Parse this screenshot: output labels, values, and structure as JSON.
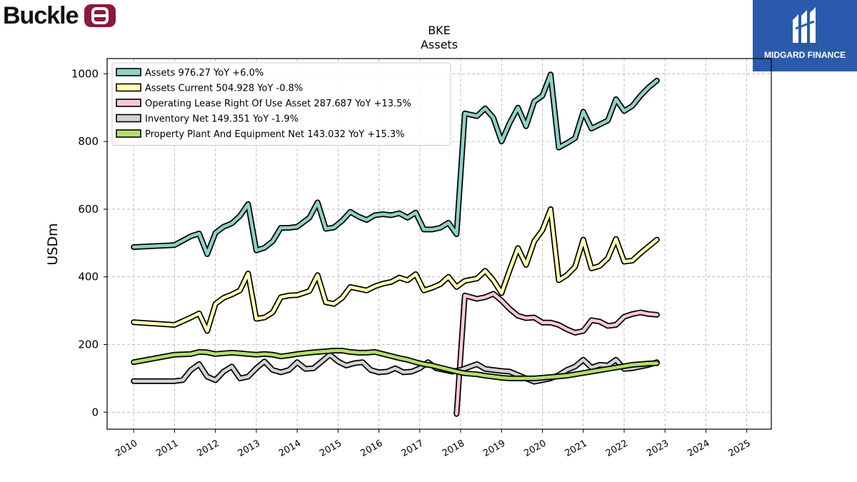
{
  "brand": {
    "name": "Buckle",
    "mark_color": "#8b1a3a"
  },
  "watermark": {
    "name": "MIDGARD FINANCE",
    "color": "#2b5aad"
  },
  "chart_data": {
    "type": "line",
    "title": "BKE",
    "subtitle": "Assets",
    "ylabel": "USDm",
    "xlabel": "",
    "xlim": [
      2009.35,
      2025.6
    ],
    "ylim": [
      -50,
      1045
    ],
    "yticks": [
      0,
      200,
      400,
      600,
      800,
      1000
    ],
    "xticks": [
      "2010",
      "2011",
      "2012",
      "2013",
      "2014",
      "2015",
      "2016",
      "2017",
      "2018",
      "2019",
      "2020",
      "2021",
      "2022",
      "2023",
      "2024",
      "2025"
    ],
    "grid": true,
    "legend_position": "top-left",
    "series": [
      {
        "name": "Assets",
        "legend": "Assets  976.27 YoY +6.0%",
        "color": "#8ed1c6",
        "points": [
          [
            2010.0,
            488
          ],
          [
            2011.0,
            494
          ],
          [
            2011.4,
            520
          ],
          [
            2011.6,
            528
          ],
          [
            2011.8,
            467
          ],
          [
            2012.0,
            530
          ],
          [
            2012.2,
            548
          ],
          [
            2012.4,
            558
          ],
          [
            2012.6,
            580
          ],
          [
            2012.8,
            615
          ],
          [
            2013.0,
            478
          ],
          [
            2013.2,
            486
          ],
          [
            2013.4,
            505
          ],
          [
            2013.6,
            545
          ],
          [
            2013.8,
            545
          ],
          [
            2014.0,
            548
          ],
          [
            2014.3,
            575
          ],
          [
            2014.5,
            620
          ],
          [
            2014.7,
            542
          ],
          [
            2014.9,
            546
          ],
          [
            2015.1,
            566
          ],
          [
            2015.3,
            592
          ],
          [
            2015.5,
            578
          ],
          [
            2015.7,
            568
          ],
          [
            2015.9,
            582
          ],
          [
            2016.1,
            585
          ],
          [
            2016.3,
            582
          ],
          [
            2016.5,
            588
          ],
          [
            2016.7,
            575
          ],
          [
            2016.9,
            590
          ],
          [
            2017.1,
            540
          ],
          [
            2017.3,
            540
          ],
          [
            2017.5,
            545
          ],
          [
            2017.7,
            560
          ],
          [
            2017.9,
            526
          ],
          [
            2018.1,
            883
          ],
          [
            2018.4,
            875
          ],
          [
            2018.6,
            898
          ],
          [
            2018.8,
            870
          ],
          [
            2019.0,
            800
          ],
          [
            2019.2,
            855
          ],
          [
            2019.4,
            900
          ],
          [
            2019.6,
            845
          ],
          [
            2019.8,
            918
          ],
          [
            2020.0,
            935
          ],
          [
            2020.2,
            998
          ],
          [
            2020.4,
            782
          ],
          [
            2020.6,
            795
          ],
          [
            2020.8,
            810
          ],
          [
            2021.0,
            888
          ],
          [
            2021.2,
            838
          ],
          [
            2021.4,
            850
          ],
          [
            2021.6,
            862
          ],
          [
            2021.8,
            925
          ],
          [
            2022.0,
            890
          ],
          [
            2022.2,
            905
          ],
          [
            2022.4,
            935
          ],
          [
            2022.6,
            960
          ],
          [
            2022.8,
            980
          ]
        ]
      },
      {
        "name": "Assets Current",
        "legend": "Assets Current  504.928 YoY -0.8%",
        "color": "#ffffb3",
        "points": [
          [
            2010.0,
            266
          ],
          [
            2011.0,
            258
          ],
          [
            2011.4,
            280
          ],
          [
            2011.6,
            292
          ],
          [
            2011.8,
            240
          ],
          [
            2012.0,
            320
          ],
          [
            2012.2,
            338
          ],
          [
            2012.4,
            348
          ],
          [
            2012.6,
            360
          ],
          [
            2012.8,
            410
          ],
          [
            2013.0,
            276
          ],
          [
            2013.2,
            280
          ],
          [
            2013.4,
            295
          ],
          [
            2013.6,
            340
          ],
          [
            2013.8,
            345
          ],
          [
            2014.0,
            346
          ],
          [
            2014.3,
            358
          ],
          [
            2014.5,
            405
          ],
          [
            2014.7,
            325
          ],
          [
            2014.9,
            320
          ],
          [
            2015.1,
            338
          ],
          [
            2015.3,
            370
          ],
          [
            2015.5,
            365
          ],
          [
            2015.7,
            360
          ],
          [
            2015.9,
            372
          ],
          [
            2016.1,
            380
          ],
          [
            2016.3,
            385
          ],
          [
            2016.5,
            398
          ],
          [
            2016.7,
            390
          ],
          [
            2016.9,
            408
          ],
          [
            2017.1,
            360
          ],
          [
            2017.3,
            368
          ],
          [
            2017.5,
            378
          ],
          [
            2017.7,
            400
          ],
          [
            2017.9,
            370
          ],
          [
            2018.1,
            388
          ],
          [
            2018.4,
            395
          ],
          [
            2018.6,
            418
          ],
          [
            2018.8,
            390
          ],
          [
            2019.0,
            352
          ],
          [
            2019.2,
            420
          ],
          [
            2019.4,
            485
          ],
          [
            2019.6,
            435
          ],
          [
            2019.8,
            505
          ],
          [
            2020.0,
            538
          ],
          [
            2020.2,
            600
          ],
          [
            2020.4,
            390
          ],
          [
            2020.6,
            405
          ],
          [
            2020.8,
            430
          ],
          [
            2021.0,
            510
          ],
          [
            2021.2,
            425
          ],
          [
            2021.4,
            432
          ],
          [
            2021.6,
            455
          ],
          [
            2021.8,
            512
          ],
          [
            2022.0,
            445
          ],
          [
            2022.2,
            448
          ],
          [
            2022.4,
            470
          ],
          [
            2022.6,
            490
          ],
          [
            2022.8,
            510
          ]
        ]
      },
      {
        "name": "Operating Lease Right Of Use Asset",
        "legend": "Operating Lease Right Of Use Asset  287.687 YoY +13.5%",
        "color": "#f9c7dc",
        "points": [
          [
            2017.9,
            -5
          ],
          [
            2018.1,
            345
          ],
          [
            2018.4,
            335
          ],
          [
            2018.6,
            340
          ],
          [
            2018.8,
            350
          ],
          [
            2019.0,
            330
          ],
          [
            2019.2,
            305
          ],
          [
            2019.4,
            285
          ],
          [
            2019.6,
            278
          ],
          [
            2019.8,
            280
          ],
          [
            2020.0,
            265
          ],
          [
            2020.2,
            265
          ],
          [
            2020.4,
            258
          ],
          [
            2020.6,
            245
          ],
          [
            2020.8,
            235
          ],
          [
            2021.0,
            240
          ],
          [
            2021.2,
            272
          ],
          [
            2021.4,
            268
          ],
          [
            2021.6,
            255
          ],
          [
            2021.8,
            258
          ],
          [
            2022.0,
            282
          ],
          [
            2022.2,
            290
          ],
          [
            2022.4,
            295
          ],
          [
            2022.6,
            290
          ],
          [
            2022.8,
            288
          ]
        ]
      },
      {
        "name": "Inventory Net",
        "legend": "Inventory Net  149.351 YoY -1.9%",
        "color": "#d3d3d3",
        "points": [
          [
            2010.0,
            92
          ],
          [
            2011.0,
            92
          ],
          [
            2011.2,
            95
          ],
          [
            2011.4,
            125
          ],
          [
            2011.6,
            142
          ],
          [
            2011.8,
            105
          ],
          [
            2012.0,
            95
          ],
          [
            2012.2,
            120
          ],
          [
            2012.4,
            135
          ],
          [
            2012.6,
            100
          ],
          [
            2012.8,
            105
          ],
          [
            2013.0,
            130
          ],
          [
            2013.2,
            150
          ],
          [
            2013.4,
            125
          ],
          [
            2013.6,
            118
          ],
          [
            2013.8,
            125
          ],
          [
            2014.0,
            148
          ],
          [
            2014.2,
            128
          ],
          [
            2014.4,
            130
          ],
          [
            2014.6,
            150
          ],
          [
            2014.8,
            170
          ],
          [
            2015.0,
            150
          ],
          [
            2015.2,
            138
          ],
          [
            2015.4,
            145
          ],
          [
            2015.6,
            148
          ],
          [
            2015.8,
            125
          ],
          [
            2016.0,
            118
          ],
          [
            2016.2,
            120
          ],
          [
            2016.4,
            130
          ],
          [
            2016.6,
            118
          ],
          [
            2016.8,
            120
          ],
          [
            2017.0,
            130
          ],
          [
            2017.2,
            148
          ],
          [
            2017.4,
            130
          ],
          [
            2017.6,
            125
          ],
          [
            2017.8,
            120
          ],
          [
            2018.0,
            125
          ],
          [
            2018.4,
            142
          ],
          [
            2018.6,
            128
          ],
          [
            2018.8,
            125
          ],
          [
            2019.0,
            122
          ],
          [
            2019.2,
            120
          ],
          [
            2019.4,
            110
          ],
          [
            2019.6,
            100
          ],
          [
            2019.8,
            90
          ],
          [
            2020.0,
            95
          ],
          [
            2020.2,
            100
          ],
          [
            2020.4,
            110
          ],
          [
            2020.6,
            125
          ],
          [
            2020.8,
            135
          ],
          [
            2021.0,
            155
          ],
          [
            2021.2,
            132
          ],
          [
            2021.4,
            140
          ],
          [
            2021.6,
            138
          ],
          [
            2021.8,
            155
          ],
          [
            2022.0,
            128
          ],
          [
            2022.2,
            130
          ],
          [
            2022.4,
            135
          ],
          [
            2022.6,
            140
          ],
          [
            2022.8,
            148
          ]
        ]
      },
      {
        "name": "Property Plant And Equipment Net",
        "legend": "Property Plant And Equipment Net  143.032 YoY +15.3%",
        "color": "#b3de69",
        "points": [
          [
            2010.0,
            148
          ],
          [
            2011.0,
            170
          ],
          [
            2011.4,
            172
          ],
          [
            2011.6,
            178
          ],
          [
            2011.8,
            177
          ],
          [
            2012.0,
            172
          ],
          [
            2012.2,
            174
          ],
          [
            2012.4,
            176
          ],
          [
            2012.6,
            174
          ],
          [
            2012.8,
            172
          ],
          [
            2013.0,
            170
          ],
          [
            2013.2,
            172
          ],
          [
            2013.4,
            170
          ],
          [
            2013.6,
            165
          ],
          [
            2013.8,
            168
          ],
          [
            2014.0,
            172
          ],
          [
            2014.3,
            176
          ],
          [
            2014.5,
            178
          ],
          [
            2014.7,
            180
          ],
          [
            2014.9,
            182
          ],
          [
            2015.1,
            182
          ],
          [
            2015.3,
            178
          ],
          [
            2015.5,
            176
          ],
          [
            2015.7,
            176
          ],
          [
            2015.9,
            178
          ],
          [
            2016.1,
            172
          ],
          [
            2016.3,
            166
          ],
          [
            2016.5,
            160
          ],
          [
            2016.7,
            155
          ],
          [
            2016.9,
            148
          ],
          [
            2017.1,
            142
          ],
          [
            2017.3,
            138
          ],
          [
            2017.5,
            132
          ],
          [
            2017.7,
            126
          ],
          [
            2017.9,
            120
          ],
          [
            2018.1,
            115
          ],
          [
            2018.4,
            112
          ],
          [
            2018.6,
            108
          ],
          [
            2018.8,
            105
          ],
          [
            2019.0,
            102
          ],
          [
            2019.2,
            100
          ],
          [
            2019.4,
            100
          ],
          [
            2019.6,
            100
          ],
          [
            2019.8,
            100
          ],
          [
            2020.0,
            102
          ],
          [
            2020.2,
            104
          ],
          [
            2020.4,
            106
          ],
          [
            2020.6,
            108
          ],
          [
            2020.8,
            112
          ],
          [
            2021.0,
            116
          ],
          [
            2021.2,
            120
          ],
          [
            2021.4,
            124
          ],
          [
            2021.6,
            128
          ],
          [
            2021.8,
            132
          ],
          [
            2022.0,
            136
          ],
          [
            2022.2,
            140
          ],
          [
            2022.4,
            142
          ],
          [
            2022.6,
            144
          ],
          [
            2022.8,
            145
          ]
        ]
      }
    ]
  }
}
